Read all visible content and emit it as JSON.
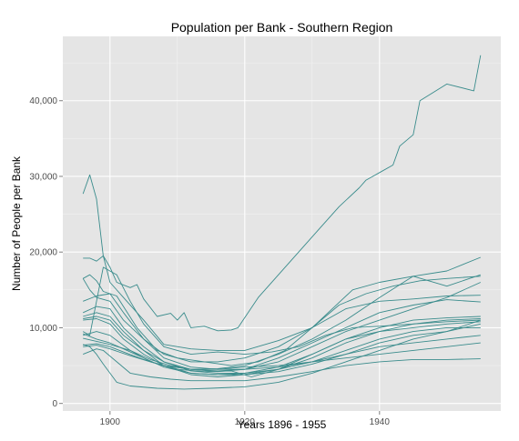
{
  "chart_data": {
    "type": "line",
    "title": "Population per Bank - Southern Region",
    "xlabel": "Years 1896 - 1955",
    "ylabel": "Number of People per Bank",
    "xlim": [
      1893,
      1958
    ],
    "ylim": [
      -1000,
      48500
    ],
    "x_ticks": [
      1900,
      1920,
      1940
    ],
    "x_tick_labels": [
      "1900",
      "1920",
      "1940"
    ],
    "y_ticks": [
      0,
      10000,
      20000,
      30000,
      40000
    ],
    "y_tick_labels": [
      "0",
      "10,000",
      "20,000",
      "30,000",
      "40,000"
    ],
    "grid": true,
    "line_color": "#3a8c8c",
    "panel_color": "#e5e5e5",
    "series": [
      {
        "points": [
          [
            1896,
            27700
          ],
          [
            1897,
            30200
          ],
          [
            1898,
            27000
          ],
          [
            1899,
            19500
          ],
          [
            1900,
            18000
          ],
          [
            1901,
            16000
          ],
          [
            1903,
            15300
          ],
          [
            1904,
            15700
          ],
          [
            1905,
            13800
          ],
          [
            1907,
            11500
          ],
          [
            1909,
            11900
          ],
          [
            1910,
            11000
          ],
          [
            1911,
            12000
          ],
          [
            1912,
            10000
          ],
          [
            1914,
            10200
          ],
          [
            1916,
            9600
          ],
          [
            1918,
            9700
          ],
          [
            1919,
            10000
          ],
          [
            1922,
            14000
          ],
          [
            1925,
            17000
          ],
          [
            1928,
            20000
          ],
          [
            1931,
            23000
          ],
          [
            1934,
            26000
          ],
          [
            1937,
            28500
          ],
          [
            1938,
            29500
          ],
          [
            1939,
            30000
          ],
          [
            1940,
            30500
          ],
          [
            1942,
            31500
          ],
          [
            1943,
            34000
          ],
          [
            1945,
            35500
          ],
          [
            1946,
            40000
          ],
          [
            1950,
            42200
          ],
          [
            1954,
            41300
          ],
          [
            1955,
            46000
          ]
        ]
      },
      {
        "points": [
          [
            1896,
            19200
          ],
          [
            1897,
            19200
          ],
          [
            1898,
            18800
          ],
          [
            1899,
            19500
          ],
          [
            1900,
            16000
          ],
          [
            1902,
            14000
          ],
          [
            1905,
            11000
          ],
          [
            1908,
            7800
          ],
          [
            1912,
            7200
          ],
          [
            1916,
            7000
          ],
          [
            1920,
            7000
          ],
          [
            1925,
            8300
          ],
          [
            1930,
            10000
          ],
          [
            1933,
            12500
          ],
          [
            1936,
            15000
          ],
          [
            1940,
            16000
          ],
          [
            1945,
            16800
          ],
          [
            1950,
            17500
          ],
          [
            1955,
            19300
          ]
        ]
      },
      {
        "points": [
          [
            1896,
            16500
          ],
          [
            1897,
            17000
          ],
          [
            1898,
            16200
          ],
          [
            1899,
            14800
          ],
          [
            1901,
            14200
          ],
          [
            1904,
            10000
          ],
          [
            1907,
            7000
          ],
          [
            1910,
            6000
          ],
          [
            1914,
            5500
          ],
          [
            1918,
            5000
          ],
          [
            1922,
            5500
          ],
          [
            1926,
            7000
          ],
          [
            1930,
            10000
          ],
          [
            1934,
            13000
          ],
          [
            1938,
            14500
          ],
          [
            1942,
            15500
          ],
          [
            1946,
            16200
          ],
          [
            1950,
            16500
          ],
          [
            1955,
            16800
          ]
        ]
      },
      {
        "points": [
          [
            1896,
            16500
          ],
          [
            1897,
            15000
          ],
          [
            1898,
            14000
          ],
          [
            1900,
            13500
          ],
          [
            1902,
            11000
          ],
          [
            1905,
            8500
          ],
          [
            1908,
            6500
          ],
          [
            1912,
            5500
          ],
          [
            1916,
            5500
          ],
          [
            1920,
            6000
          ],
          [
            1925,
            7500
          ],
          [
            1930,
            10000
          ],
          [
            1935,
            12500
          ],
          [
            1940,
            13500
          ],
          [
            1945,
            13800
          ],
          [
            1950,
            14200
          ],
          [
            1955,
            14300
          ]
        ]
      },
      {
        "points": [
          [
            1896,
            13500
          ],
          [
            1898,
            14200
          ],
          [
            1900,
            14500
          ],
          [
            1902,
            12000
          ],
          [
            1905,
            8500
          ],
          [
            1908,
            6000
          ],
          [
            1912,
            4800
          ],
          [
            1916,
            4500
          ],
          [
            1920,
            4500
          ],
          [
            1925,
            6000
          ],
          [
            1930,
            8000
          ],
          [
            1935,
            10000
          ],
          [
            1940,
            12000
          ],
          [
            1945,
            13000
          ],
          [
            1950,
            13700
          ],
          [
            1955,
            13400
          ]
        ]
      },
      {
        "points": [
          [
            1896,
            12000
          ],
          [
            1898,
            12800
          ],
          [
            1900,
            12500
          ],
          [
            1902,
            10000
          ],
          [
            1905,
            7500
          ],
          [
            1908,
            5500
          ],
          [
            1912,
            4500
          ],
          [
            1916,
            4200
          ],
          [
            1920,
            4500
          ],
          [
            1925,
            5500
          ],
          [
            1930,
            7500
          ],
          [
            1935,
            9500
          ],
          [
            1940,
            11000
          ],
          [
            1945,
            12500
          ],
          [
            1950,
            14000
          ],
          [
            1955,
            16000
          ]
        ]
      },
      {
        "points": [
          [
            1896,
            11200
          ],
          [
            1898,
            11500
          ],
          [
            1900,
            11000
          ],
          [
            1902,
            9000
          ],
          [
            1905,
            7000
          ],
          [
            1908,
            5500
          ],
          [
            1912,
            4300
          ],
          [
            1916,
            4000
          ],
          [
            1920,
            4000
          ],
          [
            1925,
            4800
          ],
          [
            1930,
            6500
          ],
          [
            1935,
            8500
          ],
          [
            1940,
            10000
          ],
          [
            1945,
            11000
          ],
          [
            1950,
            11300
          ],
          [
            1955,
            11500
          ]
        ]
      },
      {
        "points": [
          [
            1896,
            11000
          ],
          [
            1898,
            11200
          ],
          [
            1900,
            10500
          ],
          [
            1902,
            8500
          ],
          [
            1905,
            6500
          ],
          [
            1908,
            5000
          ],
          [
            1912,
            3800
          ],
          [
            1916,
            3500
          ],
          [
            1920,
            3800
          ],
          [
            1925,
            4500
          ],
          [
            1930,
            6000
          ],
          [
            1935,
            8000
          ],
          [
            1940,
            9500
          ],
          [
            1945,
            10500
          ],
          [
            1950,
            11000
          ],
          [
            1955,
            11200
          ]
        ]
      },
      {
        "points": [
          [
            1896,
            9200
          ],
          [
            1898,
            8500
          ],
          [
            1900,
            8000
          ],
          [
            1902,
            7200
          ],
          [
            1905,
            6000
          ],
          [
            1908,
            4800
          ],
          [
            1912,
            4000
          ],
          [
            1916,
            3800
          ],
          [
            1920,
            4000
          ],
          [
            1925,
            4500
          ],
          [
            1930,
            5500
          ],
          [
            1935,
            7000
          ],
          [
            1940,
            8500
          ],
          [
            1945,
            9500
          ],
          [
            1950,
            10000
          ],
          [
            1955,
            10000
          ]
        ]
      },
      {
        "points": [
          [
            1896,
            8600
          ],
          [
            1898,
            8200
          ],
          [
            1900,
            7800
          ],
          [
            1903,
            7000
          ],
          [
            1906,
            5800
          ],
          [
            1909,
            5000
          ],
          [
            1912,
            4500
          ],
          [
            1916,
            4300
          ],
          [
            1920,
            4500
          ],
          [
            1925,
            4800
          ],
          [
            1930,
            5500
          ],
          [
            1935,
            6500
          ],
          [
            1940,
            7500
          ],
          [
            1945,
            8000
          ],
          [
            1950,
            8500
          ],
          [
            1955,
            9000
          ]
        ]
      },
      {
        "points": [
          [
            1896,
            7700
          ],
          [
            1898,
            7900
          ],
          [
            1900,
            7500
          ],
          [
            1902,
            6800
          ],
          [
            1905,
            5800
          ],
          [
            1908,
            5000
          ],
          [
            1912,
            4500
          ],
          [
            1916,
            4500
          ],
          [
            1920,
            4800
          ],
          [
            1925,
            5000
          ],
          [
            1930,
            5500
          ],
          [
            1935,
            6000
          ],
          [
            1940,
            6500
          ],
          [
            1945,
            7000
          ],
          [
            1950,
            7500
          ],
          [
            1955,
            8000
          ]
        ]
      },
      {
        "points": [
          [
            1896,
            7500
          ],
          [
            1898,
            7700
          ],
          [
            1900,
            7200
          ],
          [
            1903,
            6300
          ],
          [
            1906,
            5500
          ],
          [
            1909,
            4800
          ],
          [
            1912,
            4000
          ],
          [
            1916,
            3800
          ],
          [
            1920,
            3800
          ],
          [
            1925,
            4200
          ],
          [
            1930,
            5200
          ],
          [
            1935,
            6500
          ],
          [
            1940,
            8000
          ],
          [
            1945,
            9000
          ],
          [
            1950,
            9500
          ],
          [
            1955,
            10500
          ]
        ]
      },
      {
        "points": [
          [
            1896,
            6500
          ],
          [
            1898,
            7200
          ],
          [
            1899,
            7000
          ],
          [
            1901,
            5500
          ],
          [
            1903,
            4000
          ],
          [
            1906,
            3500
          ],
          [
            1909,
            3200
          ],
          [
            1912,
            3000
          ],
          [
            1916,
            3000
          ],
          [
            1920,
            3000
          ],
          [
            1925,
            3500
          ],
          [
            1930,
            4200
          ],
          [
            1935,
            5000
          ],
          [
            1940,
            5500
          ],
          [
            1945,
            5800
          ],
          [
            1950,
            5800
          ],
          [
            1955,
            5900
          ]
        ]
      },
      {
        "points": [
          [
            1896,
            7800
          ],
          [
            1897,
            7500
          ],
          [
            1898,
            6500
          ],
          [
            1899,
            5200
          ],
          [
            1900,
            4000
          ],
          [
            1901,
            2800
          ],
          [
            1903,
            2300
          ],
          [
            1907,
            2000
          ],
          [
            1911,
            1900
          ],
          [
            1915,
            2000
          ],
          [
            1920,
            2200
          ],
          [
            1925,
            2800
          ],
          [
            1930,
            4000
          ],
          [
            1935,
            5500
          ],
          [
            1940,
            7000
          ],
          [
            1945,
            8500
          ],
          [
            1950,
            9500
          ],
          [
            1955,
            11000
          ]
        ]
      },
      {
        "points": [
          [
            1896,
            9500
          ],
          [
            1897,
            9000
          ],
          [
            1899,
            18000
          ],
          [
            1901,
            17000
          ],
          [
            1903,
            13500
          ],
          [
            1905,
            10500
          ],
          [
            1908,
            7500
          ],
          [
            1912,
            6500
          ],
          [
            1916,
            6800
          ],
          [
            1920,
            6500
          ],
          [
            1924,
            6800
          ],
          [
            1928,
            7500
          ],
          [
            1932,
            9000
          ],
          [
            1936,
            10000
          ],
          [
            1940,
            10200
          ],
          [
            1945,
            10500
          ],
          [
            1950,
            10800
          ],
          [
            1955,
            11000
          ]
        ]
      },
      {
        "points": [
          [
            1896,
            9000
          ],
          [
            1898,
            9500
          ],
          [
            1900,
            9000
          ],
          [
            1903,
            7000
          ],
          [
            1906,
            5500
          ],
          [
            1910,
            4500
          ],
          [
            1914,
            4200
          ],
          [
            1918,
            4300
          ],
          [
            1921,
            3500
          ],
          [
            1925,
            4500
          ],
          [
            1930,
            6500
          ],
          [
            1935,
            8500
          ],
          [
            1940,
            9500
          ],
          [
            1945,
            10000
          ],
          [
            1950,
            10500
          ],
          [
            1955,
            10800
          ]
        ]
      },
      {
        "points": [
          [
            1896,
            11500
          ],
          [
            1898,
            12000
          ],
          [
            1900,
            11500
          ],
          [
            1902,
            9500
          ],
          [
            1905,
            7000
          ],
          [
            1908,
            5000
          ],
          [
            1912,
            4500
          ],
          [
            1916,
            4600
          ],
          [
            1920,
            5000
          ],
          [
            1925,
            6500
          ],
          [
            1930,
            8500
          ],
          [
            1935,
            11000
          ],
          [
            1940,
            14000
          ],
          [
            1945,
            16800
          ],
          [
            1950,
            15500
          ],
          [
            1955,
            17000
          ]
        ]
      }
    ]
  }
}
